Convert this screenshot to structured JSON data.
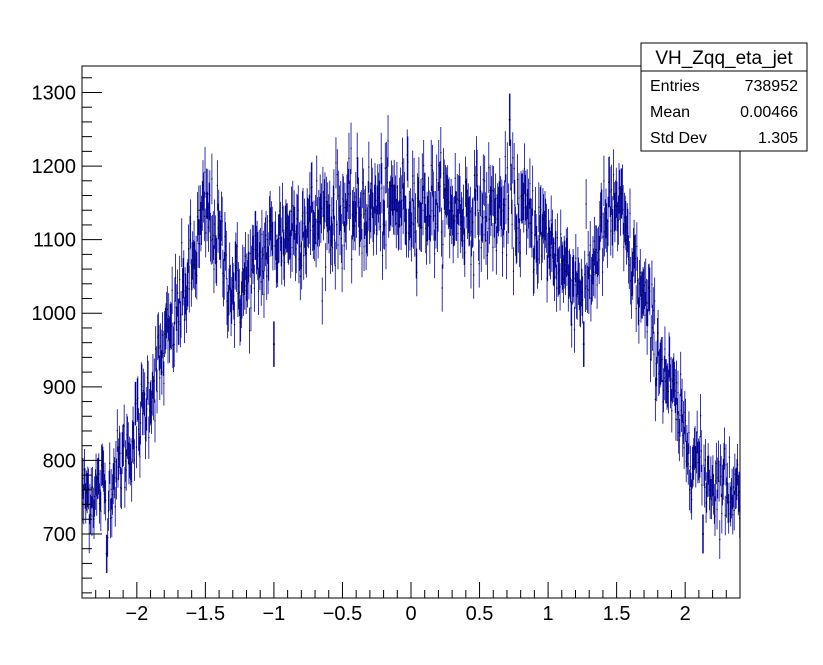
{
  "chart_data": {
    "type": "scatter",
    "title": "",
    "xlabel": "",
    "ylabel": "",
    "xlim": [
      -2.4,
      2.4
    ],
    "ylim": [
      613,
      1336
    ],
    "bins": 960,
    "grid": false,
    "legend": "none",
    "x_ticks": [
      {
        "value": -2,
        "label": "−2"
      },
      {
        "value": -1.5,
        "label": "−1.5"
      },
      {
        "value": -1,
        "label": "−1"
      },
      {
        "value": -0.5,
        "label": "−0.5"
      },
      {
        "value": 0,
        "label": "0"
      },
      {
        "value": 0.5,
        "label": "0.5"
      },
      {
        "value": 1,
        "label": "1"
      },
      {
        "value": 1.5,
        "label": "1.5"
      },
      {
        "value": 2,
        "label": "2"
      }
    ],
    "y_ticks": [
      {
        "value": 700,
        "label": "700"
      },
      {
        "value": 800,
        "label": "800"
      },
      {
        "value": 900,
        "label": "900"
      },
      {
        "value": 1000,
        "label": "1000"
      },
      {
        "value": 1100,
        "label": "1100"
      },
      {
        "value": 1200,
        "label": "1200"
      },
      {
        "value": 1300,
        "label": "1300"
      }
    ],
    "series": [
      {
        "color": "#000099",
        "envelope": {
          "x": [
            -2.4,
            -2.2,
            -2.0,
            -1.8,
            -1.6,
            -1.5,
            -1.4,
            -1.3,
            -1.2,
            -1.0,
            -0.8,
            -0.5,
            0.0,
            0.5,
            0.8,
            1.0,
            1.2,
            1.3,
            1.4,
            1.5,
            1.6,
            1.8,
            2.0,
            2.2,
            2.4
          ],
          "y": [
            750,
            765,
            840,
            950,
            1060,
            1140,
            1100,
            1030,
            1040,
            1100,
            1120,
            1135,
            1150,
            1135,
            1140,
            1095,
            1040,
            1050,
            1110,
            1150,
            1075,
            950,
            830,
            770,
            760
          ]
        },
        "notable_points": [
          {
            "x": -2.22,
            "y": 673
          },
          {
            "x": -1.0,
            "y": 958
          },
          {
            "x": 1.26,
            "y": 958
          },
          {
            "x": 0.72,
            "y": 1263
          },
          {
            "x": 2.13,
            "y": 700
          }
        ]
      }
    ]
  },
  "stats_box": {
    "title": "VH_Zqq_eta_jet",
    "rows": [
      {
        "label": "Entries",
        "value": "738952"
      },
      {
        "label": "Mean",
        "value": "0.00466"
      },
      {
        "label": "Std Dev",
        "value": "1.305"
      }
    ]
  }
}
